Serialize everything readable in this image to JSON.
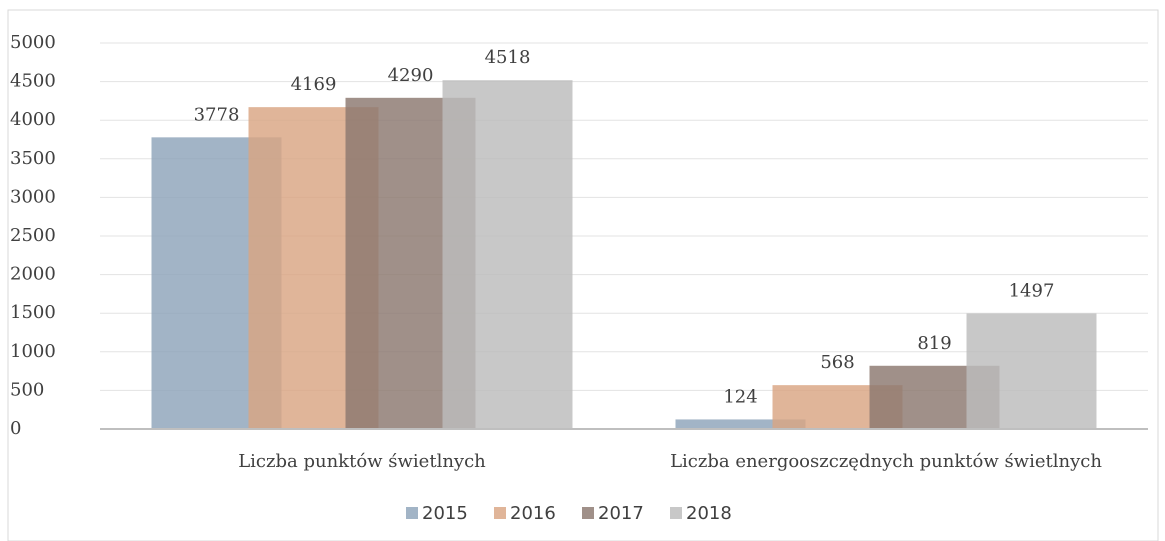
{
  "chart_data": {
    "type": "bar",
    "categories": [
      "Liczba punktów świetlnych",
      "Liczba energooszczędnych punktów świetlnych"
    ],
    "series": [
      {
        "name": "2015",
        "color": "#8ea4b9",
        "values": [
          3778,
          124
        ]
      },
      {
        "name": "2016",
        "color": "#d9a582",
        "values": [
          4169,
          568
        ]
      },
      {
        "name": "2017",
        "color": "#8b776f",
        "values": [
          4290,
          819
        ]
      },
      {
        "name": "2018",
        "color": "#bcbcbc",
        "values": [
          4518,
          1497
        ]
      }
    ],
    "ylim": [
      0,
      5000
    ],
    "yticks": [
      0,
      500,
      1000,
      1500,
      2000,
      2500,
      3000,
      3500,
      4000,
      4500,
      5000
    ],
    "grid": true,
    "legend": "bottom"
  }
}
